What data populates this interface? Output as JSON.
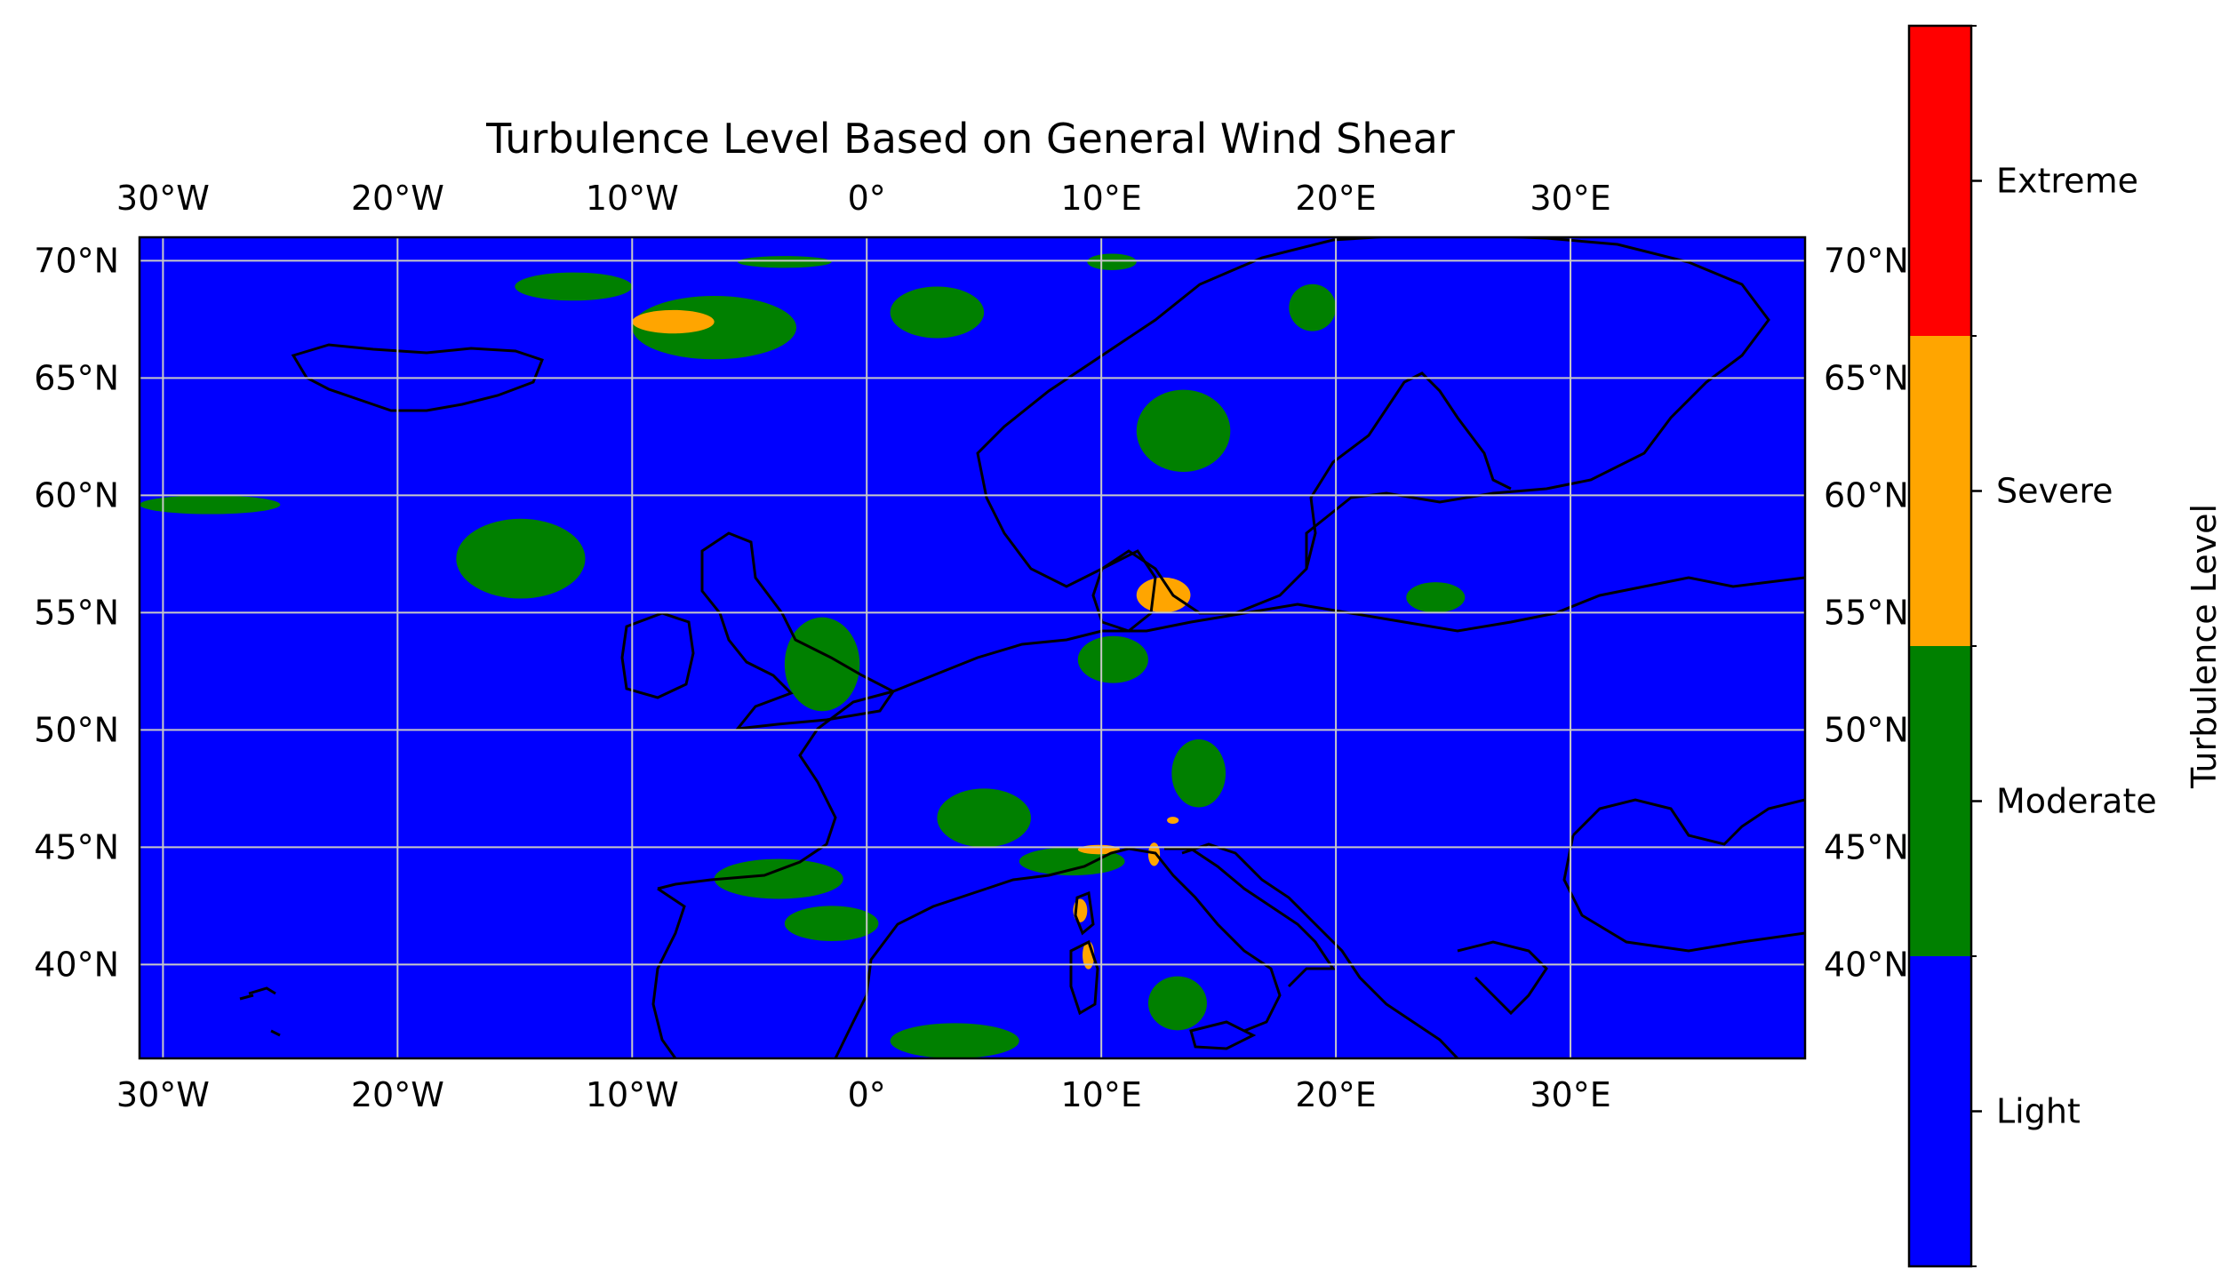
{
  "title": "Turbulence Level Based on General Wind Shear",
  "map_extent": {
    "lon_min": -31,
    "lon_max": 40,
    "lat_min": 36,
    "lat_max": 71
  },
  "lon_ticks": [
    {
      "value": -30,
      "label": "30°W"
    },
    {
      "value": -20,
      "label": "20°W"
    },
    {
      "value": -10,
      "label": "10°W"
    },
    {
      "value": 0,
      "label": "0°"
    },
    {
      "value": 10,
      "label": "10°E"
    },
    {
      "value": 20,
      "label": "20°E"
    },
    {
      "value": 30,
      "label": "30°E"
    }
  ],
  "lat_ticks": [
    {
      "value": 40,
      "label": "40°N"
    },
    {
      "value": 45,
      "label": "45°N"
    },
    {
      "value": 50,
      "label": "50°N"
    },
    {
      "value": 55,
      "label": "55°N"
    },
    {
      "value": 60,
      "label": "60°N"
    },
    {
      "value": 65,
      "label": "65°N"
    },
    {
      "value": 70,
      "label": "70°N"
    }
  ],
  "gridlines": true,
  "colorbar": {
    "label": "Turbulence Level",
    "levels": [
      {
        "name": "Light",
        "color": "#0000ff"
      },
      {
        "name": "Moderate",
        "color": "#008000"
      },
      {
        "name": "Severe",
        "color": "#ffa500"
      },
      {
        "name": "Extreme",
        "color": "#ff0000"
      }
    ]
  },
  "background_level": "Light",
  "regions": [
    {
      "level": "Moderate",
      "lon": [
        -15,
        -10
      ],
      "lat": [
        69.5,
        68.3
      ]
    },
    {
      "level": "Moderate",
      "lon": [
        -10,
        -3
      ],
      "lat": [
        68.5,
        65.8
      ]
    },
    {
      "level": "Moderate",
      "lon": [
        -5.5,
        -1.5
      ],
      "lat": [
        70.2,
        69.7
      ]
    },
    {
      "level": "Moderate",
      "lon": [
        1,
        5
      ],
      "lat": [
        68.9,
        66.7
      ]
    },
    {
      "level": "Moderate",
      "lon": [
        9.4,
        11.5
      ],
      "lat": [
        70.3,
        69.6
      ]
    },
    {
      "level": "Moderate",
      "lon": [
        18,
        20
      ],
      "lat": [
        69,
        67
      ]
    },
    {
      "level": "Moderate",
      "lon": [
        -17.5,
        -12
      ],
      "lat": [
        59,
        55.6
      ]
    },
    {
      "level": "Moderate",
      "lon": [
        -31,
        -25
      ],
      "lat": [
        60,
        59.2
      ]
    },
    {
      "level": "Moderate",
      "lon": [
        -3.5,
        -0.3
      ],
      "lat": [
        54.8,
        50.8
      ]
    },
    {
      "level": "Moderate",
      "lon": [
        9,
        12
      ],
      "lat": [
        54,
        52
      ]
    },
    {
      "level": "Moderate",
      "lon": [
        11.5,
        15.5
      ],
      "lat": [
        64.5,
        61
      ]
    },
    {
      "level": "Moderate",
      "lon": [
        13,
        15.3
      ],
      "lat": [
        49.6,
        46.7
      ]
    },
    {
      "level": "Moderate",
      "lon": [
        3,
        7
      ],
      "lat": [
        47.5,
        45
      ]
    },
    {
      "level": "Moderate",
      "lon": [
        -6.5,
        -1
      ],
      "lat": [
        44.5,
        42.8
      ]
    },
    {
      "level": "Moderate",
      "lon": [
        -3.5,
        0.5
      ],
      "lat": [
        42.5,
        41
      ]
    },
    {
      "level": "Moderate",
      "lon": [
        6.5,
        11
      ],
      "lat": [
        45,
        43.8
      ]
    },
    {
      "level": "Moderate",
      "lon": [
        12,
        14.5
      ],
      "lat": [
        39.5,
        37.2
      ]
    },
    {
      "level": "Moderate",
      "lon": [
        1,
        6.5
      ],
      "lat": [
        37.5,
        36
      ]
    },
    {
      "level": "Moderate",
      "lon": [
        23,
        25.5
      ],
      "lat": [
        56.3,
        55
      ]
    },
    {
      "level": "Severe",
      "lon": [
        -10,
        -6.5
      ],
      "lat": [
        67.9,
        66.9
      ]
    },
    {
      "level": "Severe",
      "lon": [
        11.5,
        13.8
      ],
      "lat": [
        56.5,
        55
      ]
    },
    {
      "level": "Severe",
      "lon": [
        9,
        10.8
      ],
      "lat": [
        45.1,
        44.7
      ]
    },
    {
      "level": "Severe",
      "lon": [
        8.8,
        9.4
      ],
      "lat": [
        42.8,
        41.8
      ]
    },
    {
      "level": "Severe",
      "lon": [
        9.2,
        9.7
      ],
      "lat": [
        41,
        39.8
      ]
    },
    {
      "level": "Severe",
      "lon": [
        12,
        12.5
      ],
      "lat": [
        45.2,
        44.2
      ]
    },
    {
      "level": "Severe",
      "lon": [
        12.8,
        13.3
      ],
      "lat": [
        46.3,
        46
      ]
    }
  ]
}
